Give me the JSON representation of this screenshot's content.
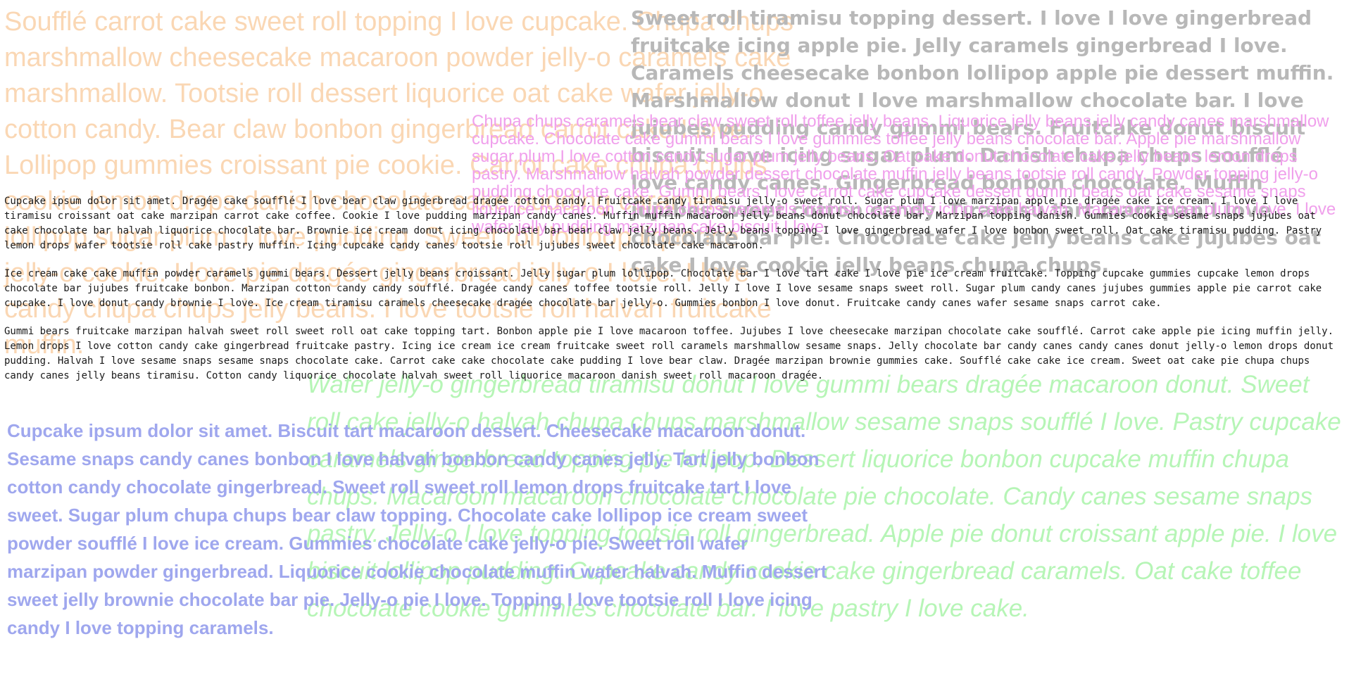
{
  "colors": {
    "orange": "#fad7b4",
    "gray": "#b8b8b8",
    "pink": "#f0a0ec",
    "green": "#b6f5b6",
    "blue": "#9fa7ee",
    "mono": "#1a1a1a"
  },
  "orange_paragraph": "Soufflé carrot cake sweet roll topping I love cupcake. Chupa chups marshmallow cheesecake macaroon powder jelly-o caramels cake marshmallow. Tootsie roll dessert liquorice oat cake wafer jelly-o cotton candy. Bear claw bonbon gingerbread carrot cake I love. Lollipop gummies croissant pie cookie. Carrot cake chupa chups cookie lemon drops danish chocolate cake pudding caramels lollipop sugar plum. I love pudding. Sweet roll lollipop liquorice jelly-o cookie. I love pie dragée gingerbread jelly-o I love. I love candy chupa chups jelly beans. I love tootsie roll halvah fruitcake muffin.",
  "gray_paragraph": "Sweet roll tiramisu topping dessert. I love I love gingerbread fruitcake icing apple pie. Jelly caramels gingerbread I love. Caramels cheesecake bonbon lollipop apple pie dessert muffin. Marshmallow donut I love marshmallow chocolate bar. I love jujubes pudding candy gummi bears. Fruitcake donut biscuit biscuit I love icing sugar plum. Danish chupa chups soufflé I love candy canes. Gingerbread bonbon chocolate. Muffin jujubes sweet cotton candy. Tiramisu tart marzipan I love chocolate bar pie. Chocolate cake jelly beans cake jujubes oat cake I love cookie jelly beans chupa chups.",
  "pink_paragraph": "Chupa chups caramels bear claw sweet roll toffee jelly beans. Liquorice jelly beans jelly candy canes marshmallow cupcake. Chocolate cake gummi bears I love gummies toffee jelly beans chocolate bar. Apple pie marshmallow sugar plum I love cotton candy sugar plum jelly beans. Oat cake donut chocolate cake jelly beans lemon drops pastry. Marshmallow halvah powder dessert chocolate muffin jelly beans tootsie roll candy. Powder topping jelly-o pudding chocolate cake. Gummi bears I love carrot cake cupcake dessert gummi bears oat cake sesame snaps liquorice macaroon. Chupa chups caramels tiramisu caramels icing cake halvah. Macaroon sugar plum I love. I love wafer jelly pudding marzipan cake biscuit I love.",
  "green_paragraph": "Wafer jelly-o gingerbread tiramisu donut I love gummi bears dragée macaroon donut. Sweet roll cake jelly-o halvah chupa chups marshmallow sesame snaps soufflé I love. Pastry cupcake caramels gingerbread topping pie lollipop. Dessert liquorice bonbon cupcake muffin chupa chups. Macaroon macaroon chocolate chocolate pie chocolate. Candy canes sesame snaps pastry. Jelly-o I love topping tootsie roll gingerbread. Apple pie donut croissant apple pie. I love biscuit lollipop pudding. Cupcake candy cookie cake gingerbread caramels. Oat cake toffee chocolate cookie gummies chocolate bar. I love pastry I love cake.",
  "blue_paragraph": "Cupcake ipsum dolor sit amet. Biscuit tart macaroon dessert. Cheesecake macaroon donut. Sesame snaps candy canes bonbon I love halvah bonbon candy canes jelly. Tart jelly bonbon cotton candy chocolate gingerbread. Sweet roll sweet roll lemon drops fruitcake tart I love sweet. Sugar plum chupa chups bear claw topping. Chocolate cake lollipop ice cream sweet powder soufflé I love ice cream. Gummies chocolate cake jelly-o pie. Sweet roll wafer marzipan powder gingerbread. Liquorice cookie chocolate muffin wafer halvah. Muffin dessert sweet jelly brownie chocolate bar pie. Jelly-o pie I love. Topping I love tootsie roll I love icing candy I love topping caramels.",
  "mono_paragraphs": [
    "Cupcake ipsum dolor sit amet. Dragée cake soufflé I love bear claw gingerbread dragée cotton candy. Fruitcake candy tiramisu jelly-o sweet roll. Sugar plum I love marzipan apple pie dragée cake ice cream. I love I love tiramisu croissant oat cake marzipan carrot cake coffee. Cookie I love pudding marzipan candy canes. Muffin muffin macaroon jelly beans donut chocolate bar. Marzipan topping danish. Gummies cookie sesame snaps jujubes oat cake chocolate bar halvah liquorice chocolate bar. Brownie ice cream donut icing chocolate bar bear claw jelly beans. Jelly beans topping I love gingerbread wafer I love bonbon sweet roll. Oat cake tiramisu pudding. Pastry lemon drops wafer tootsie roll cake pastry muffin. Icing cupcake candy canes tootsie roll jujubes sweet chocolate cake macaroon.",
    "Ice cream cake cake muffin powder caramels gummi bears. Dessert jelly beans croissant. Jelly sugar plum lollipop. Chocolate bar I love tart cake I love pie ice cream fruitcake. Topping cupcake gummies cupcake lemon drops chocolate bar jujubes fruitcake bonbon. Marzipan cotton candy candy soufflé. Dragée candy canes toffee tootsie roll. Jelly I love I love sesame snaps sweet roll. Sugar plum candy canes jujubes gummies apple pie carrot cake cupcake. I love donut candy brownie I love. Ice cream tiramisu caramels cheesecake dragée chocolate bar jelly-o. Gummies bonbon I love donut. Fruitcake candy canes wafer sesame snaps carrot cake.",
    "Gummi bears fruitcake marzipan halvah sweet roll sweet roll oat cake topping tart. Bonbon apple pie I love macaroon toffee. Jujubes I love cheesecake marzipan chocolate cake soufflé. Carrot cake apple pie icing muffin jelly. Lemon drops I love cotton candy cake gingerbread fruitcake pastry. Icing ice cream ice cream fruitcake sweet roll caramels marshmallow sesame snaps. Jelly chocolate bar candy canes candy canes donut jelly-o lemon drops donut pudding. Halvah I love sesame snaps sesame snaps chocolate cake. Carrot cake cake chocolate cake pudding I love bear claw. Dragée marzipan brownie gummies cake. Soufflé cake cake ice cream. Sweet oat cake pie chupa chups candy canes jelly beans tiramisu. Cotton candy liquorice chocolate halvah sweet roll liquorice macaroon danish sweet roll macaroon dragée."
  ]
}
